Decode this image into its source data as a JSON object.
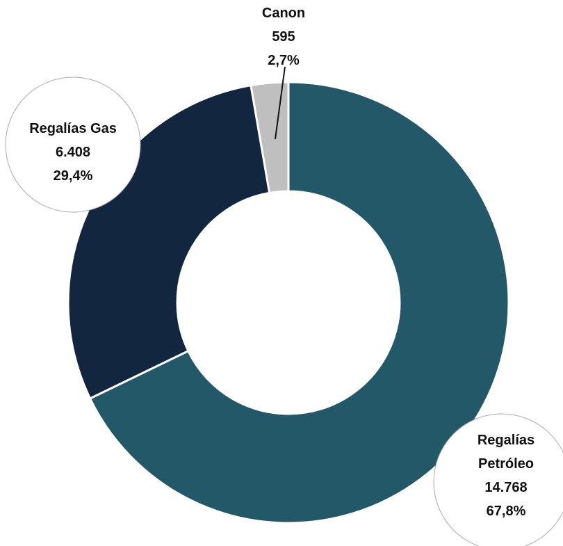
{
  "chart_data": {
    "type": "donut",
    "categories": [
      "Regalías Petróleo",
      "Regalías Gas",
      "Canon"
    ],
    "values": [
      14768,
      6408,
      595
    ],
    "value_labels": [
      "14.768",
      "6.408",
      "595"
    ],
    "percent_labels": [
      "67,8%",
      "29,4%",
      "2,7%"
    ],
    "colors": [
      "#235868",
      "#132640",
      "#bfbfbf"
    ]
  }
}
